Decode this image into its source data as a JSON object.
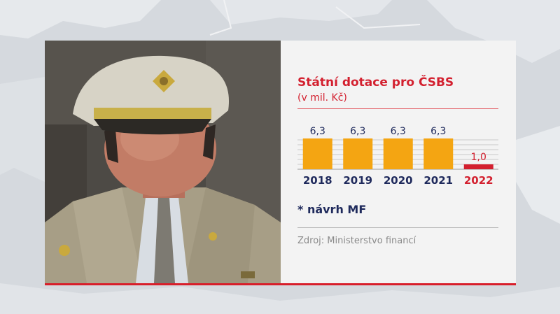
{
  "graphic": {
    "title": "Státní dotace pro ČSBS",
    "subtitle": "(v mil. Kč)",
    "note": "* návrh MF",
    "source": "Zdroj: Ministerstvo financí"
  },
  "colors": {
    "accent_red": "#d3202f",
    "bar_orange": "#f4a512",
    "label_navy": "#1f2a5c",
    "panel_bg": "#f3f3f3"
  },
  "photo": {
    "subject": "man-in-military-dress-uniform-and-cap"
  },
  "chart_data": {
    "type": "bar",
    "categories": [
      "2018",
      "2019",
      "2020",
      "2021",
      "2022"
    ],
    "values": [
      6.3,
      6.3,
      6.3,
      6.3,
      1.0
    ],
    "value_labels": [
      "6,3",
      "6,3",
      "6,3",
      "6,3",
      "1,0"
    ],
    "highlight": [
      false,
      false,
      false,
      false,
      true
    ],
    "title": "Státní dotace pro ČSBS",
    "subtitle": "(v mil. Kč)",
    "ylim": [
      0,
      6.3
    ],
    "grid": true,
    "legend": "none"
  }
}
